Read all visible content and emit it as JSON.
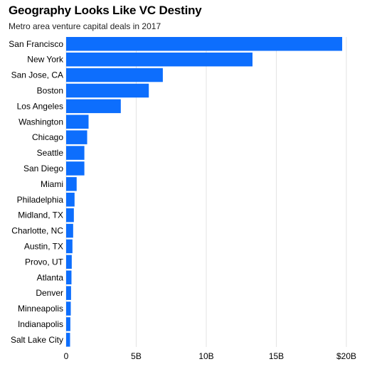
{
  "chart_data": {
    "type": "bar",
    "orientation": "horizontal",
    "title": "Geography Looks Like VC Destiny",
    "subtitle": "Metro area venture capital deals in 2017",
    "xlabel": "",
    "ylabel": "",
    "categories": [
      "San Francisco",
      "New York",
      "San Jose, CA",
      "Boston",
      "Los Angeles",
      "Washington",
      "Chicago",
      "Seattle",
      "San Diego",
      "Miami",
      "Philadelphia",
      "Midland, TX",
      "Charlotte, NC",
      "Austin, TX",
      "Provo, UT",
      "Atlanta",
      "Denver",
      "Minneapolis",
      "Indianapolis",
      "Salt Lake City"
    ],
    "values": [
      19.7,
      13.3,
      6.9,
      5.9,
      3.9,
      1.6,
      1.5,
      1.3,
      1.3,
      0.75,
      0.6,
      0.55,
      0.5,
      0.45,
      0.4,
      0.38,
      0.35,
      0.33,
      0.3,
      0.28
    ],
    "xlim": [
      0,
      20
    ],
    "ticks": [
      0,
      5,
      10,
      15,
      20
    ],
    "tick_labels": [
      "0",
      "5B",
      "10B",
      "15B",
      "$20B"
    ],
    "grid": true,
    "bar_color": "#0d6efd",
    "grid_color": "#e3e3e3"
  }
}
